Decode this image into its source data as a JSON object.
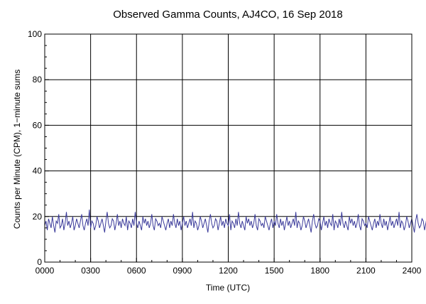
{
  "chart_data": {
    "type": "line",
    "title": "Observed Gamma Counts, AJ4CO, 16 Sep 2018",
    "xlabel": "Time (UTC)",
    "ylabel": "Counts per Minute (CPM), 1−minute sums",
    "xlim": [
      0,
      24
    ],
    "ylim": [
      0,
      100
    ],
    "x_ticks": [
      0,
      3,
      6,
      9,
      12,
      15,
      18,
      21,
      24
    ],
    "x_tick_labels": [
      "0000",
      "0300",
      "0600",
      "0900",
      "1200",
      "1500",
      "1800",
      "2100",
      "2400"
    ],
    "y_ticks": [
      0,
      20,
      40,
      60,
      80,
      100
    ],
    "y_tick_labels": [
      "0",
      "20",
      "40",
      "60",
      "80",
      "100"
    ],
    "grid": true,
    "series": [
      {
        "color": "#3a3a9a",
        "x_start": 0,
        "x_step_minutes": 5,
        "values": [
          16,
          18,
          14,
          19,
          17,
          15,
          20,
          16,
          13,
          18,
          17,
          21,
          15,
          16,
          19,
          14,
          17,
          22,
          16,
          18,
          15,
          17,
          20,
          14,
          16,
          19,
          17,
          15,
          18,
          21,
          16,
          14,
          17,
          19,
          16,
          23,
          15,
          18,
          17,
          14,
          16,
          20,
          18,
          15,
          17,
          19,
          16,
          13,
          18,
          22,
          17,
          15,
          16,
          19,
          18,
          14,
          17,
          21,
          16,
          18,
          15,
          19,
          17,
          16,
          20,
          14,
          18,
          17,
          15,
          19,
          16,
          22,
          17,
          15,
          18,
          16,
          14,
          20,
          17,
          19,
          16,
          18,
          15,
          17,
          21,
          16,
          14,
          19,
          18,
          16,
          17,
          15,
          20,
          18,
          16,
          14,
          17,
          19,
          15,
          18,
          16,
          21,
          17,
          15,
          19,
          16,
          18,
          14,
          17,
          20,
          16,
          18,
          15,
          17,
          19,
          16,
          22,
          15,
          18,
          17,
          14,
          16,
          20,
          18,
          15,
          17,
          19,
          16,
          13,
          18,
          21,
          17,
          15,
          16,
          19,
          18,
          14,
          17,
          20,
          16,
          18,
          15,
          19,
          17,
          16,
          21,
          14,
          18,
          17,
          15,
          19,
          16,
          22,
          17,
          15,
          18,
          16,
          14,
          20,
          17,
          19,
          16,
          18,
          15,
          17,
          21,
          16,
          14,
          19,
          18,
          16,
          17,
          15,
          20,
          18,
          16,
          14,
          17,
          19,
          15,
          18,
          16,
          21,
          17,
          15,
          19,
          16,
          18,
          14,
          17,
          20,
          16,
          18,
          15,
          17,
          19,
          16,
          22,
          15,
          18,
          17,
          14,
          16,
          20,
          18,
          15,
          17,
          19,
          16,
          13,
          18,
          21,
          17,
          15,
          16,
          19,
          18,
          14,
          17,
          20,
          16,
          18,
          15,
          19,
          17,
          16,
          21,
          14,
          18,
          17,
          15,
          19,
          16,
          22,
          17,
          15,
          18,
          16,
          14,
          20,
          17,
          19,
          16,
          18,
          15,
          17,
          21,
          16,
          14,
          19,
          18,
          16,
          17,
          15,
          20,
          18,
          16,
          14,
          17,
          19,
          15,
          18,
          16,
          21,
          17,
          15,
          19,
          16,
          18,
          14,
          17,
          20,
          16,
          18,
          15,
          17,
          19,
          16,
          22,
          15,
          18,
          17,
          14,
          16,
          20,
          18,
          15,
          17,
          19,
          16,
          13,
          18,
          21,
          17,
          15,
          16,
          19,
          18,
          14,
          17,
          20
        ]
      }
    ]
  }
}
